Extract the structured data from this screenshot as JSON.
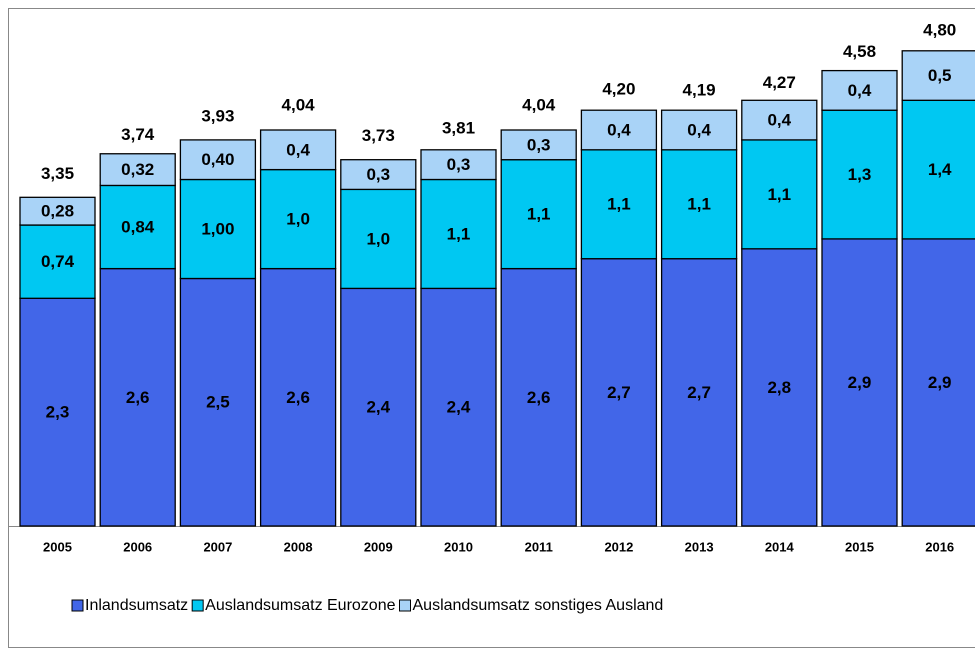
{
  "chart_data": {
    "type": "stacked_bar",
    "categories": [
      "2005",
      "2006",
      "2007",
      "2008",
      "2009",
      "2010",
      "2011",
      "2012",
      "2013",
      "2014",
      "2015",
      "2016"
    ],
    "series": [
      {
        "name": "Inlandsumsatz",
        "color": "#4266e8",
        "values": [
          2.3,
          2.6,
          2.5,
          2.6,
          2.4,
          2.4,
          2.6,
          2.7,
          2.7,
          2.8,
          2.9,
          2.9
        ],
        "value_labels": [
          "2,3",
          "2,6",
          "2,5",
          "2,6",
          "2,4",
          "2,4",
          "2,6",
          "2,7",
          "2,7",
          "2,8",
          "2,9",
          "2,9"
        ]
      },
      {
        "name": "Auslandsumsatz Eurozone",
        "color": "#00c8f2",
        "values": [
          0.74,
          0.84,
          1,
          1,
          1,
          1.1,
          1.1,
          1.1,
          1.1,
          1.1,
          1.3,
          1.4
        ],
        "value_labels": [
          "0,74",
          "0,84",
          "1,00",
          "1,0",
          "1,0",
          "1,1",
          "1,1",
          "1,1",
          "1,1",
          "1,1",
          "1,3",
          "1,4"
        ]
      },
      {
        "name": "Auslandsumsatz sonstiges Ausland",
        "color": "#a9d3f7",
        "values": [
          0.28,
          0.32,
          0.4,
          0.4,
          0.3,
          0.3,
          0.3,
          0.4,
          0.4,
          0.4,
          0.4,
          0.5
        ],
        "value_labels": [
          "0,28",
          "0,32",
          "0,40",
          "0,4",
          "0,3",
          "0,3",
          "0,3",
          "0,4",
          "0,4",
          "0,4",
          "0,4",
          "0,5"
        ]
      }
    ],
    "totals": [
      3.35,
      3.74,
      3.93,
      4.04,
      3.73,
      3.81,
      4.04,
      4.2,
      4.19,
      4.27,
      4.58,
      4.8
    ],
    "total_labels": [
      "3,35",
      "3,74",
      "3,93",
      "4,04",
      "3,73",
      "3,81",
      "4,04",
      "4,20",
      "4,19",
      "4,27",
      "4,58",
      "4,80"
    ],
    "legend": "bottom"
  }
}
